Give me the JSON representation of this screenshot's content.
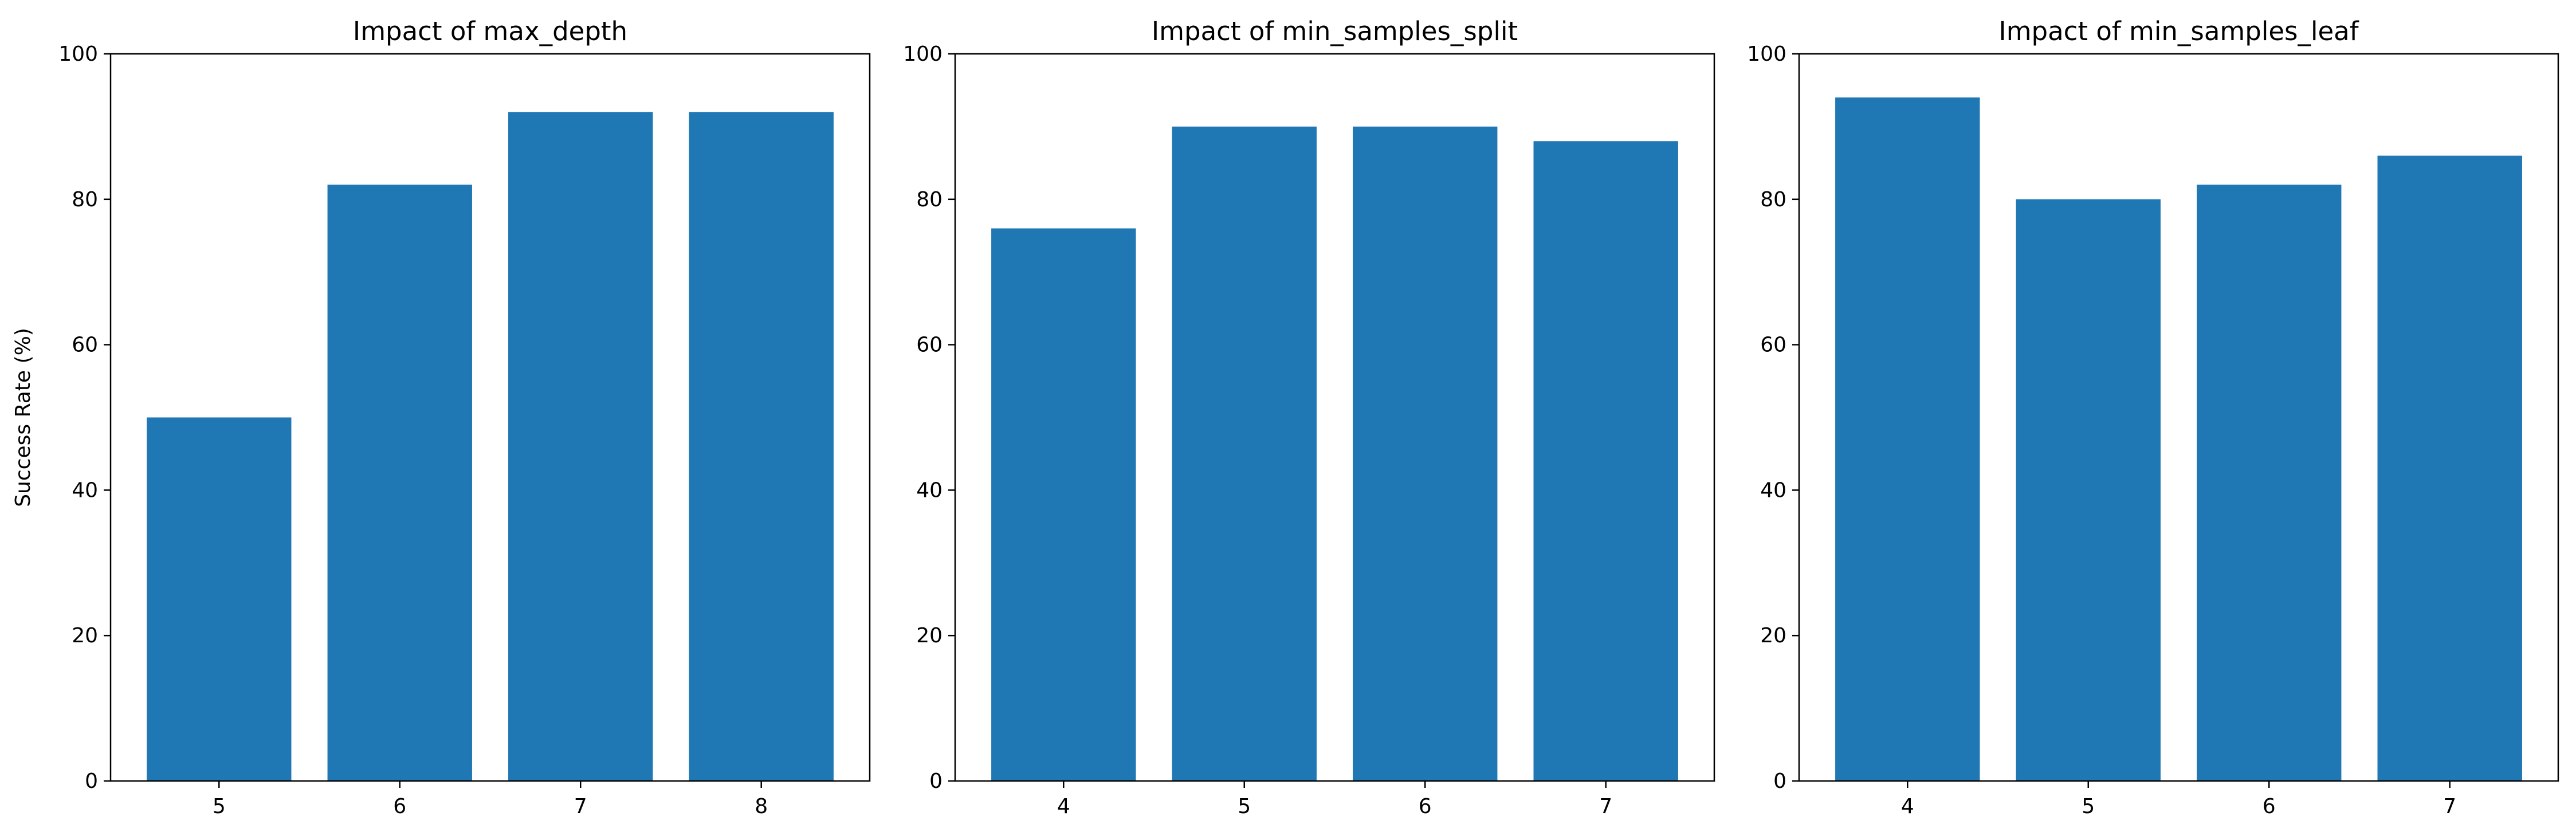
{
  "chart_data": [
    {
      "type": "bar",
      "title": "Impact of max_depth",
      "xlabel": "",
      "ylabel": "Success Rate (%)",
      "categories": [
        "5",
        "6",
        "7",
        "8"
      ],
      "values": [
        50,
        82,
        92,
        92
      ],
      "ylim": [
        0,
        100
      ],
      "yticks": [
        "0",
        "20",
        "40",
        "60",
        "80",
        "100"
      ],
      "color": "#1f77b4",
      "grid": false
    },
    {
      "type": "bar",
      "title": "Impact of min_samples_split",
      "xlabel": "",
      "ylabel": "",
      "categories": [
        "4",
        "5",
        "6",
        "7"
      ],
      "values": [
        76,
        90,
        90,
        88
      ],
      "ylim": [
        0,
        100
      ],
      "yticks": [
        "0",
        "20",
        "40",
        "60",
        "80",
        "100"
      ],
      "color": "#1f77b4",
      "grid": false
    },
    {
      "type": "bar",
      "title": "Impact of min_samples_leaf",
      "xlabel": "",
      "ylabel": "",
      "categories": [
        "4",
        "5",
        "6",
        "7"
      ],
      "values": [
        94,
        80,
        82,
        86
      ],
      "ylim": [
        0,
        100
      ],
      "yticks": [
        "0",
        "20",
        "40",
        "60",
        "80",
        "100"
      ],
      "color": "#1f77b4",
      "grid": false
    }
  ]
}
